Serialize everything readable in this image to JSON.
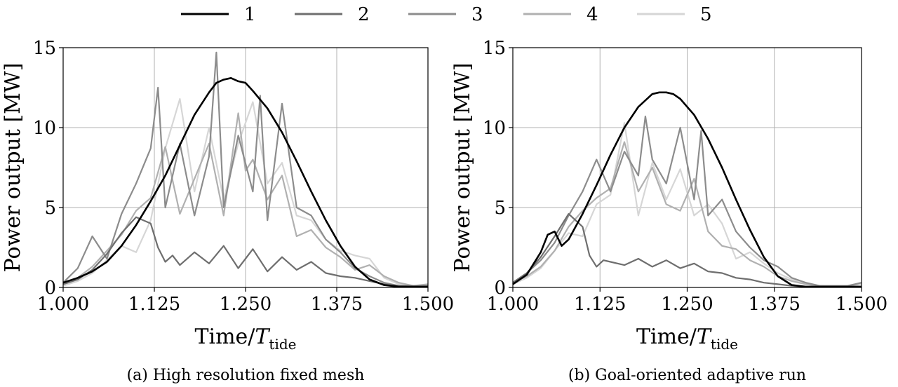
{
  "legend": [
    "1",
    "2",
    "3",
    "4",
    "5"
  ],
  "colors": {
    "1": "#000000",
    "2": "#6e6e6e",
    "3": "#8c8c8c",
    "4": "#b0b0b0",
    "5": "#d6d6d6"
  },
  "chart_data": [
    {
      "type": "line",
      "caption": "(a) High resolution fixed mesh",
      "xlabel": "Time/",
      "xlabel_sym": "T",
      "xlabel_sub": "tide",
      "ylabel": "Power output [MW]",
      "xlim": [
        1.0,
        1.5
      ],
      "ylim": [
        0,
        15
      ],
      "xticks": [
        "1.000",
        "1.125",
        "1.250",
        "1.375",
        "1.500"
      ],
      "yticks": [
        "0",
        "5",
        "10",
        "15"
      ],
      "grid": true,
      "series": [
        {
          "name": "1",
          "x": [
            1.0,
            1.02,
            1.04,
            1.06,
            1.08,
            1.1,
            1.12,
            1.14,
            1.16,
            1.18,
            1.2,
            1.21,
            1.22,
            1.23,
            1.24,
            1.25,
            1.26,
            1.28,
            1.3,
            1.32,
            1.34,
            1.36,
            1.38,
            1.4,
            1.42,
            1.44,
            1.46,
            1.48,
            1.5
          ],
          "y": [
            0.3,
            0.6,
            1.0,
            1.6,
            2.6,
            3.9,
            5.4,
            7.0,
            8.9,
            10.8,
            12.2,
            12.8,
            13.0,
            13.1,
            12.9,
            12.8,
            12.3,
            11.2,
            9.7,
            7.9,
            6.0,
            4.2,
            2.6,
            1.3,
            0.5,
            0.15,
            0.05,
            0.05,
            0.05
          ]
        },
        {
          "name": "2",
          "x": [
            1.0,
            1.02,
            1.04,
            1.06,
            1.08,
            1.1,
            1.12,
            1.13,
            1.14,
            1.15,
            1.16,
            1.18,
            1.2,
            1.22,
            1.24,
            1.26,
            1.28,
            1.3,
            1.32,
            1.34,
            1.36,
            1.38,
            1.4,
            1.42,
            1.44,
            1.46,
            1.48,
            1.5
          ],
          "y": [
            0.2,
            0.5,
            1.1,
            2.1,
            3.4,
            4.4,
            4.0,
            2.5,
            1.6,
            2.0,
            1.4,
            2.2,
            1.5,
            2.6,
            1.2,
            2.4,
            1.0,
            1.9,
            1.1,
            1.6,
            0.9,
            0.7,
            0.6,
            0.4,
            0.2,
            0.1,
            0.05,
            0.05
          ]
        },
        {
          "name": "3",
          "x": [
            1.0,
            1.02,
            1.03,
            1.04,
            1.06,
            1.08,
            1.1,
            1.12,
            1.13,
            1.14,
            1.16,
            1.18,
            1.2,
            1.21,
            1.22,
            1.24,
            1.26,
            1.27,
            1.28,
            1.3,
            1.32,
            1.34,
            1.36,
            1.38,
            1.4,
            1.42,
            1.44,
            1.46,
            1.48,
            1.5
          ],
          "y": [
            0.3,
            1.2,
            2.2,
            3.2,
            1.8,
            4.6,
            6.5,
            8.7,
            12.5,
            5.0,
            9.0,
            4.5,
            8.2,
            14.7,
            5.0,
            9.5,
            6.0,
            12.0,
            4.2,
            11.5,
            5.0,
            4.5,
            3.0,
            2.2,
            1.2,
            0.7,
            0.3,
            0.1,
            0.1,
            0.1
          ]
        },
        {
          "name": "4",
          "x": [
            1.0,
            1.02,
            1.04,
            1.06,
            1.08,
            1.1,
            1.12,
            1.14,
            1.16,
            1.18,
            1.2,
            1.22,
            1.24,
            1.25,
            1.26,
            1.28,
            1.3,
            1.32,
            1.34,
            1.36,
            1.38,
            1.4,
            1.42,
            1.44,
            1.46,
            1.48,
            1.5
          ],
          "y": [
            0.2,
            0.6,
            1.3,
            2.3,
            3.3,
            4.8,
            5.6,
            8.8,
            4.6,
            6.8,
            9.0,
            4.5,
            10.9,
            7.3,
            8.0,
            5.5,
            7.0,
            3.2,
            3.6,
            2.5,
            1.9,
            1.1,
            1.4,
            0.7,
            0.3,
            0.1,
            0.2
          ]
        },
        {
          "name": "5",
          "x": [
            1.0,
            1.02,
            1.04,
            1.06,
            1.08,
            1.1,
            1.12,
            1.14,
            1.16,
            1.18,
            1.2,
            1.22,
            1.24,
            1.26,
            1.28,
            1.3,
            1.32,
            1.34,
            1.36,
            1.38,
            1.4,
            1.42,
            1.44,
            1.46,
            1.48,
            1.5
          ],
          "y": [
            0.1,
            0.4,
            0.9,
            1.7,
            2.6,
            2.2,
            4.2,
            8.7,
            11.8,
            6.0,
            10.0,
            5.5,
            9.0,
            11.6,
            6.5,
            7.8,
            4.5,
            4.2,
            3.0,
            2.3,
            2.0,
            1.8,
            0.6,
            0.2,
            0.1,
            0.1
          ]
        }
      ]
    },
    {
      "type": "line",
      "caption": "(b) Goal-oriented adaptive run",
      "xlabel": "Time/",
      "xlabel_sym": "T",
      "xlabel_sub": "tide",
      "ylabel": "Power output [MW]",
      "xlim": [
        1.0,
        1.5
      ],
      "ylim": [
        0,
        15
      ],
      "xticks": [
        "1.000",
        "1.125",
        "1.250",
        "1.375",
        "1.500"
      ],
      "yticks": [
        "0",
        "5",
        "10",
        "15"
      ],
      "grid": true,
      "series": [
        {
          "name": "1",
          "x": [
            1.0,
            1.02,
            1.04,
            1.05,
            1.06,
            1.07,
            1.08,
            1.1,
            1.12,
            1.14,
            1.16,
            1.18,
            1.2,
            1.21,
            1.22,
            1.23,
            1.24,
            1.26,
            1.28,
            1.3,
            1.32,
            1.34,
            1.36,
            1.38,
            1.4,
            1.42,
            1.44,
            1.46,
            1.48,
            1.5
          ],
          "y": [
            0.2,
            0.8,
            2.2,
            3.3,
            3.5,
            2.6,
            3.0,
            4.6,
            6.4,
            8.3,
            10.0,
            11.3,
            12.1,
            12.2,
            12.2,
            12.1,
            11.8,
            10.8,
            9.3,
            7.5,
            5.5,
            3.6,
            1.9,
            0.7,
            0.15,
            0.05,
            0.05,
            0.05,
            0.05,
            0.05
          ]
        },
        {
          "name": "2",
          "x": [
            1.0,
            1.02,
            1.04,
            1.06,
            1.08,
            1.1,
            1.11,
            1.12,
            1.13,
            1.14,
            1.16,
            1.18,
            1.2,
            1.22,
            1.24,
            1.26,
            1.28,
            1.3,
            1.32,
            1.34,
            1.36,
            1.38,
            1.4,
            1.42,
            1.44,
            1.46,
            1.48,
            1.5
          ],
          "y": [
            0.3,
            0.9,
            1.9,
            3.2,
            4.6,
            3.8,
            2.0,
            1.3,
            1.7,
            1.6,
            1.4,
            1.8,
            1.3,
            1.7,
            1.2,
            1.5,
            1.0,
            0.9,
            0.6,
            0.5,
            0.3,
            0.2,
            0.1,
            0.05,
            0.05,
            0.05,
            0.05,
            0.05
          ]
        },
        {
          "name": "3",
          "x": [
            1.0,
            1.02,
            1.04,
            1.06,
            1.08,
            1.1,
            1.12,
            1.14,
            1.16,
            1.18,
            1.19,
            1.2,
            1.22,
            1.24,
            1.26,
            1.27,
            1.28,
            1.3,
            1.32,
            1.34,
            1.36,
            1.38,
            1.4,
            1.42,
            1.44,
            1.46,
            1.48,
            1.5
          ],
          "y": [
            0.3,
            0.9,
            1.7,
            2.8,
            4.5,
            6.0,
            8.0,
            6.0,
            8.5,
            7.0,
            10.7,
            8.0,
            6.5,
            10.0,
            5.5,
            9.8,
            4.5,
            5.5,
            3.5,
            2.5,
            1.7,
            1.3,
            0.6,
            0.3,
            0.1,
            0.1,
            0.1,
            0.3
          ]
        },
        {
          "name": "4",
          "x": [
            1.0,
            1.02,
            1.04,
            1.06,
            1.08,
            1.1,
            1.12,
            1.14,
            1.16,
            1.18,
            1.2,
            1.22,
            1.24,
            1.26,
            1.28,
            1.3,
            1.32,
            1.34,
            1.36,
            1.38,
            1.4,
            1.42,
            1.44,
            1.46,
            1.48,
            1.5
          ],
          "y": [
            0.3,
            0.7,
            1.3,
            2.3,
            3.8,
            4.8,
            5.6,
            6.2,
            9.1,
            6.0,
            7.5,
            5.2,
            4.8,
            6.8,
            3.5,
            2.6,
            2.4,
            1.7,
            1.3,
            0.7,
            0.4,
            0.2,
            0.1,
            0.05,
            0.05,
            0.3
          ]
        },
        {
          "name": "5",
          "x": [
            1.0,
            1.02,
            1.04,
            1.06,
            1.08,
            1.1,
            1.12,
            1.14,
            1.16,
            1.18,
            1.2,
            1.22,
            1.24,
            1.26,
            1.28,
            1.3,
            1.32,
            1.34,
            1.36,
            1.38,
            1.4,
            1.42,
            1.44,
            1.46,
            1.48,
            1.5
          ],
          "y": [
            0.2,
            0.6,
            1.2,
            2.3,
            3.4,
            3.2,
            5.2,
            5.8,
            10.3,
            4.5,
            7.8,
            5.5,
            7.4,
            4.5,
            5.2,
            4.0,
            1.8,
            2.2,
            1.5,
            0.9,
            0.5,
            0.2,
            0.1,
            0.05,
            0.05,
            0.2
          ]
        }
      ]
    }
  ]
}
